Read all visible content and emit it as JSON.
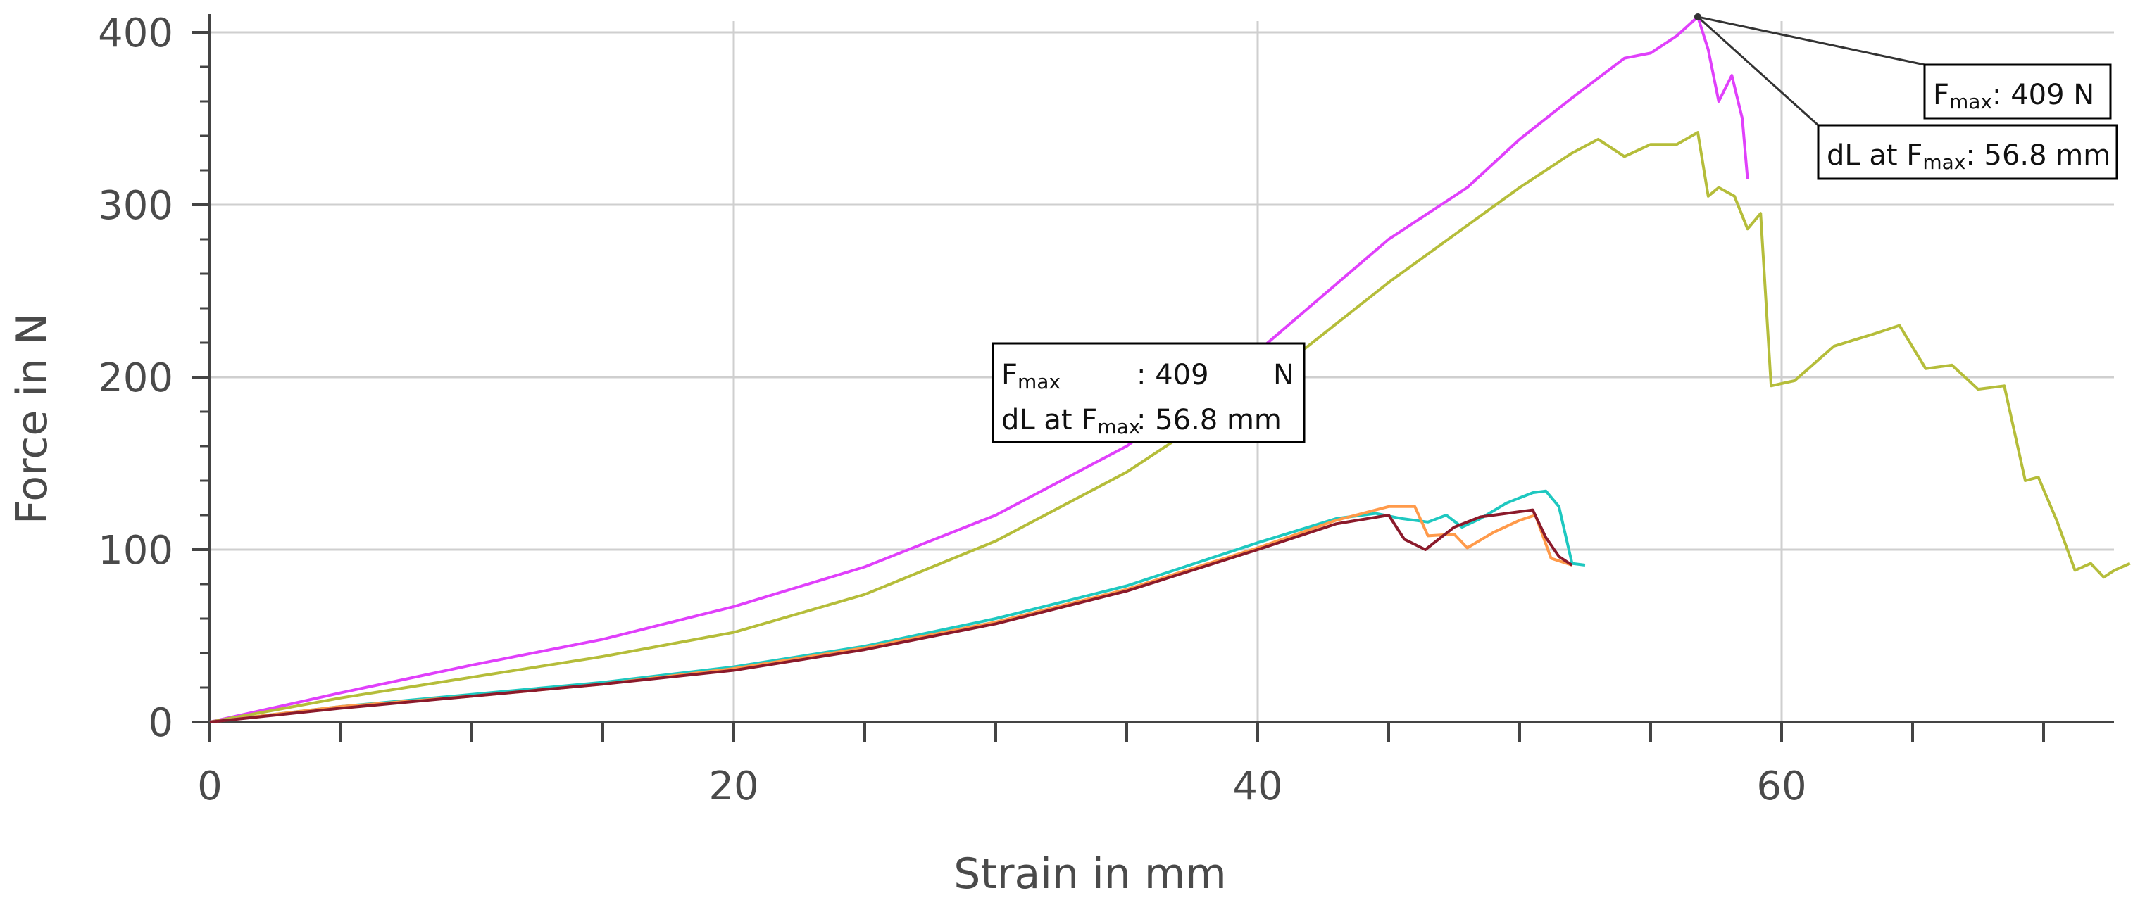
{
  "chart_data": {
    "type": "line",
    "title": "",
    "xlabel": "Strain in mm",
    "ylabel": "Force in N",
    "xlim": [
      0,
      73.5
    ],
    "ylim": [
      0,
      409
    ],
    "xticks": [
      0,
      20,
      40,
      60
    ],
    "yticks": [
      0,
      100,
      200,
      300,
      400
    ],
    "grid": true,
    "series": [
      {
        "color": "#e040fb",
        "x": [
          0,
          5,
          10,
          15,
          20,
          25,
          30,
          35,
          40,
          45,
          48,
          50,
          52,
          54,
          55,
          56,
          56.8,
          57.2,
          57.6,
          58.1,
          58.5,
          58.7
        ],
        "y": [
          0,
          17,
          33,
          48,
          67,
          90,
          120,
          160,
          215,
          280,
          310,
          338,
          362,
          385,
          388,
          398,
          409,
          390,
          360,
          375,
          350,
          315
        ]
      },
      {
        "color": "#b5bd3a",
        "x": [
          0,
          5,
          10,
          15,
          20,
          25,
          30,
          35,
          40,
          45,
          50,
          52,
          53,
          54,
          55,
          56,
          56.8,
          57.2,
          57.6,
          58.2,
          58.7,
          59.2,
          59.6,
          60.5,
          62,
          63.5,
          64.5,
          65.5,
          66.5,
          67.5,
          68.5,
          69.3,
          69.8,
          70.5,
          71.2,
          71.8,
          72.3,
          72.7,
          73.3
        ],
        "y": [
          0,
          14,
          26,
          38,
          52,
          74,
          105,
          145,
          195,
          255,
          310,
          330,
          338,
          328,
          335,
          335,
          342,
          305,
          310,
          305,
          286,
          295,
          195,
          198,
          218,
          225,
          230,
          205,
          207,
          193,
          195,
          140,
          142,
          117,
          88,
          92,
          84,
          88,
          92
        ]
      },
      {
        "color": "#1ec8c0",
        "x": [
          0,
          5,
          10,
          15,
          20,
          25,
          30,
          35,
          40,
          43,
          44.5,
          45.5,
          46.5,
          47.2,
          47.8,
          48.5,
          49.5,
          50.5,
          51,
          51.5,
          52,
          52.5
        ],
        "y": [
          0,
          9,
          16,
          23,
          32,
          44,
          60,
          79,
          104,
          118,
          121,
          118,
          116,
          120,
          113,
          118,
          127,
          133,
          134,
          125,
          92,
          91
        ]
      },
      {
        "color": "#ff9a4a",
        "x": [
          0,
          5,
          10,
          15,
          20,
          25,
          30,
          35,
          40,
          43,
          45,
          46,
          46.5,
          47.5,
          48,
          49,
          50,
          50.6,
          51.2,
          52
        ],
        "y": [
          0,
          9,
          15,
          22,
          31,
          43,
          58,
          77,
          101,
          117,
          125,
          125,
          108,
          109,
          101,
          110,
          117,
          120,
          95,
          91
        ]
      },
      {
        "color": "#8b1a2b",
        "x": [
          0,
          5,
          10,
          15,
          20,
          25,
          30,
          35,
          40,
          43,
          45,
          45.6,
          46.4,
          47.5,
          48.5,
          49.5,
          50.5,
          51,
          51.5,
          52
        ],
        "y": [
          0,
          8,
          15,
          22,
          30,
          42,
          57,
          76,
          100,
          115,
          120,
          106,
          100,
          113,
          119,
          121,
          123,
          107,
          96,
          91
        ]
      }
    ],
    "annotations": [
      {
        "fmax_label": "F",
        "fmax_sub": "max",
        "colon_value": ": 409",
        "unit": "N",
        "dl_label": "dL at F",
        "dl_sub": "max",
        "dl_value": ":  56.8 mm"
      },
      {
        "fmax_label": "F",
        "fmax_sub": "max",
        "value": ": 409 N",
        "dl_label": "dL at F",
        "dl_sub": "max",
        "dl_value": ": 56.8 mm"
      }
    ]
  }
}
